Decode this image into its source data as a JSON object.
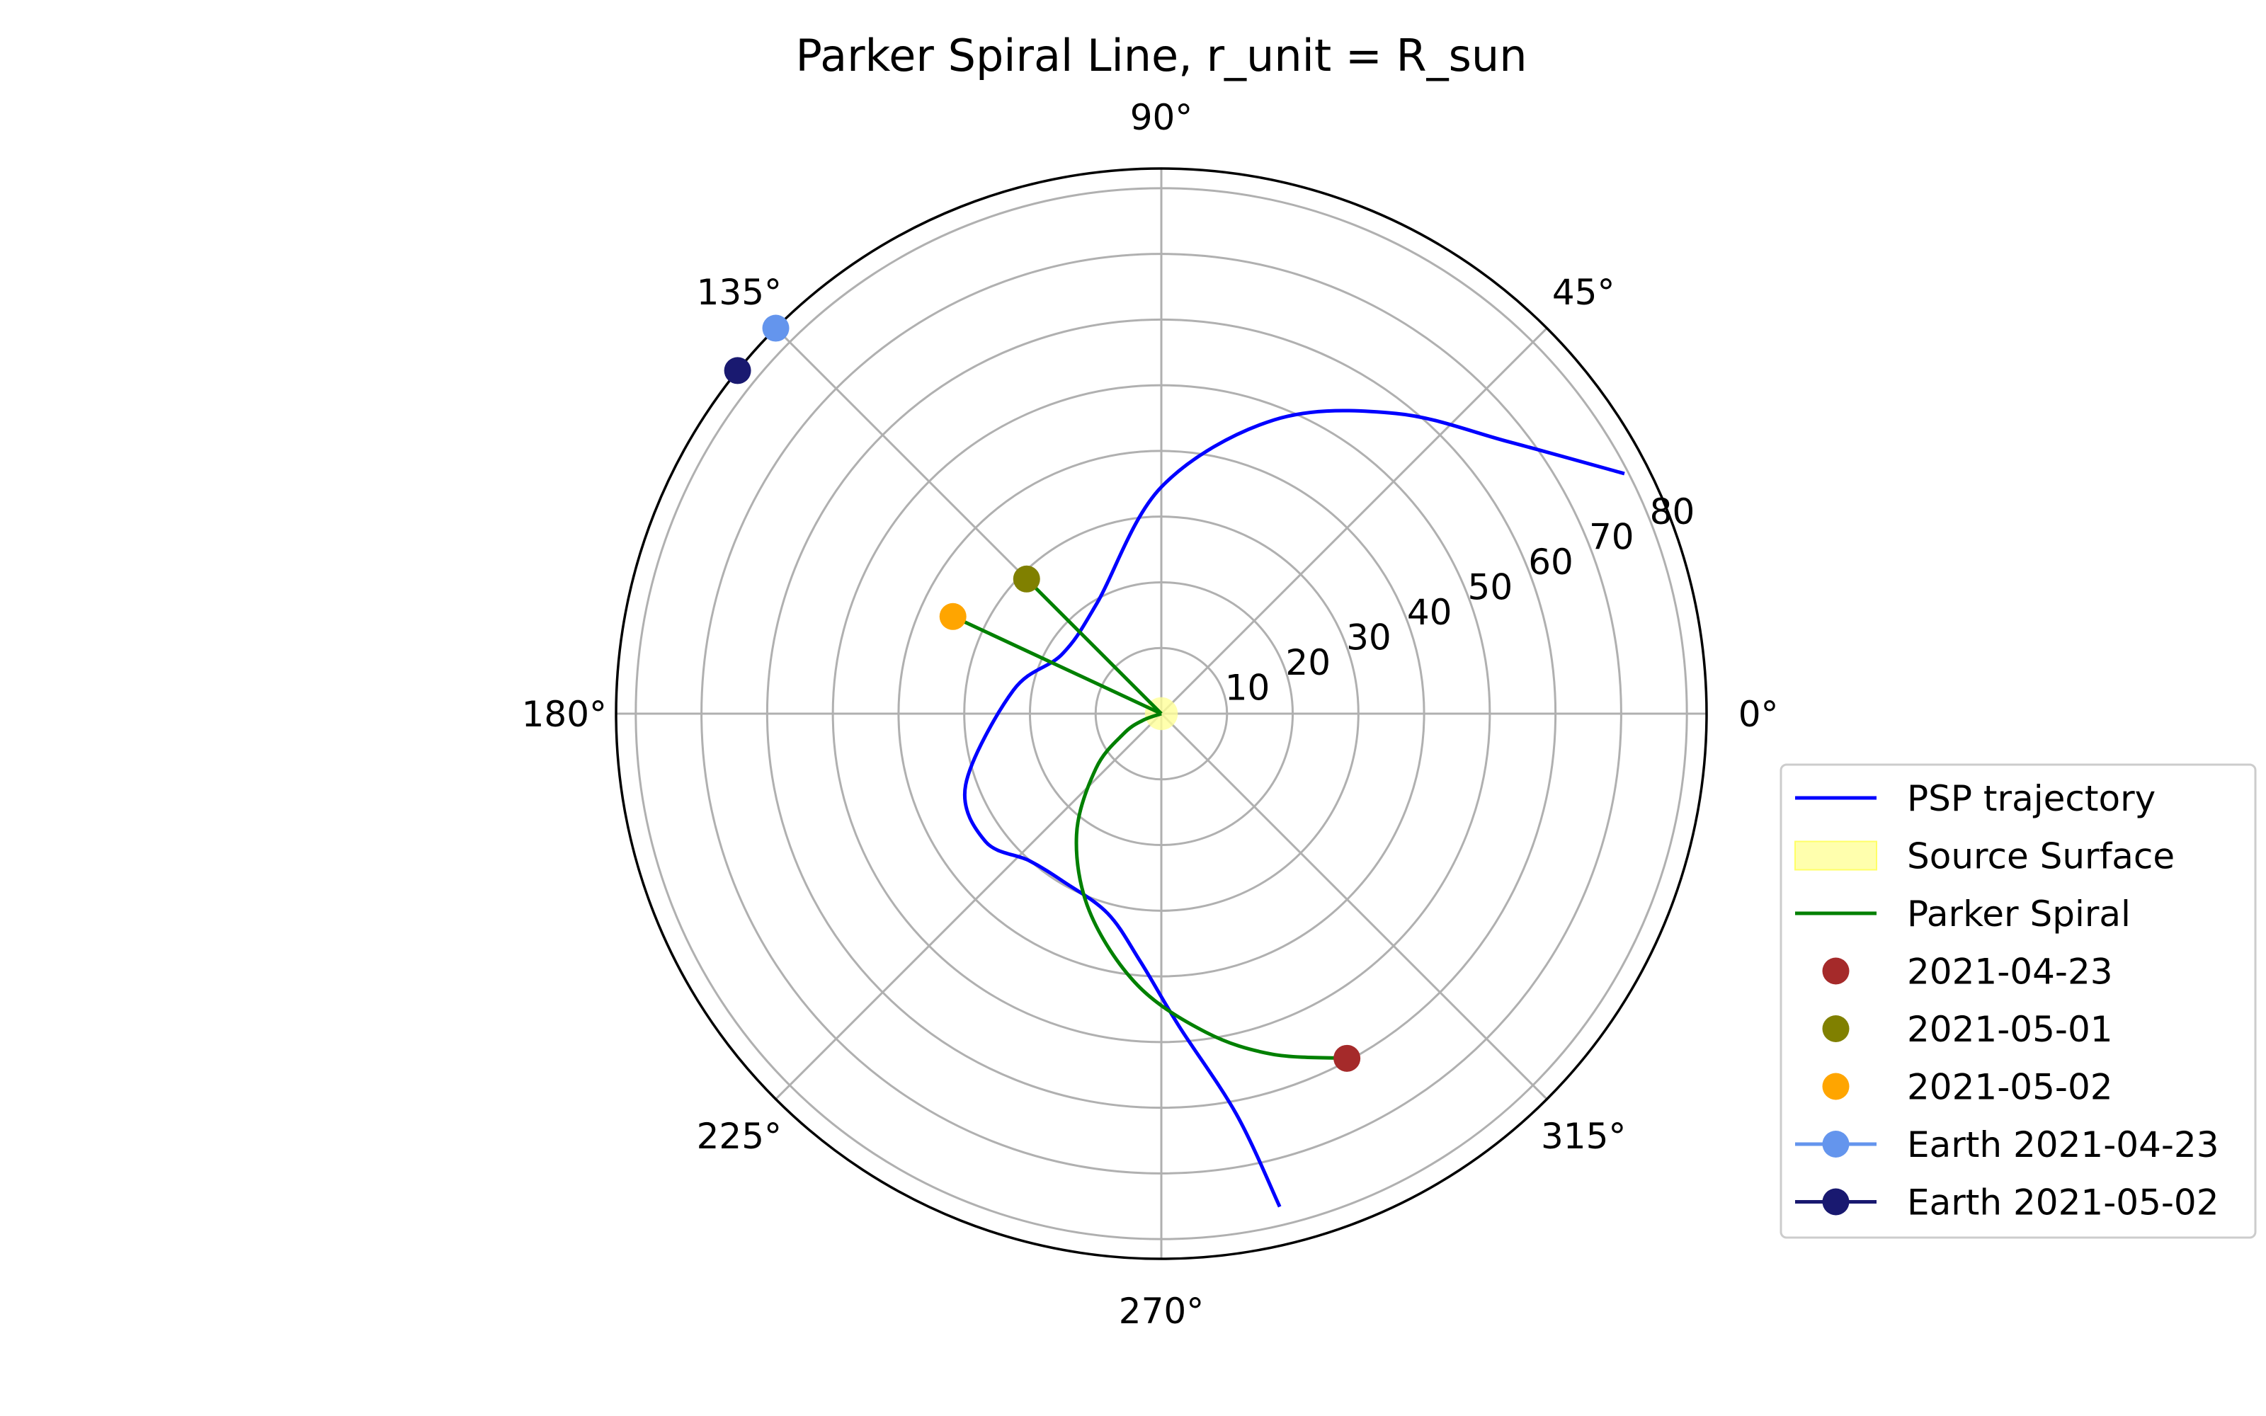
{
  "chart_data": {
    "type": "polar",
    "title": "Parker Spiral Line, r_unit = R_sun",
    "r_lim": [
      0,
      83
    ],
    "r_ticks": [
      10,
      20,
      30,
      40,
      50,
      60,
      70,
      80
    ],
    "r_tick_labels": [
      "10",
      "20",
      "30",
      "40",
      "50",
      "60",
      "70",
      "80"
    ],
    "theta_ticks_deg": [
      0,
      45,
      90,
      135,
      180,
      225,
      270,
      315
    ],
    "theta_tick_labels": [
      "0°",
      "45°",
      "90°",
      "135°",
      "180°",
      "225°",
      "270°",
      "315°"
    ],
    "grid": true,
    "legend_location": "center-right",
    "psp_trajectory": {
      "name": "PSP trajectory",
      "color": "#0000ff",
      "points": [
        [
          -76.5,
          77.2
        ],
        [
          -79.4,
          62.0
        ],
        [
          -86.8,
          47.6
        ],
        [
          -94.9,
          37.8
        ],
        [
          -105.0,
          31.5
        ],
        [
          -120.0,
          29.6
        ],
        [
          -132.0,
          30.1
        ],
        [
          -144.0,
          33.1
        ],
        [
          -160.0,
          31.7
        ],
        [
          -189.0,
          22.8
        ],
        [
          -211.0,
          17.6
        ],
        [
          -240.0,
          19.5
        ],
        [
          -270.0,
          34.5
        ],
        [
          -291.0,
          47.9
        ],
        [
          -308.0,
          58.0
        ],
        [
          -322.0,
          67.2
        ],
        [
          -332.6,
          79.4
        ]
      ]
    },
    "source_surface": {
      "name": "Source Surface",
      "color": "#ffff99",
      "radius": 2.5
    },
    "parker_spiral": {
      "name": "Parker Spiral",
      "color": "#008000",
      "lines": [
        [
          [
            -61.7,
            59.6
          ],
          [
            -72.0,
            54.5
          ],
          [
            -82.0,
            49.0
          ],
          [
            -95.0,
            41.5
          ],
          [
            -110.0,
            32.0
          ],
          [
            -125.0,
            22.5
          ],
          [
            -140.0,
            13.0
          ],
          [
            -152.0,
            6.5
          ],
          [
            -160.0,
            3.0
          ],
          [
            -168.0,
            0.0
          ]
        ],
        [
          [
            135.0,
            29.0
          ],
          [
            0.0,
            0.0
          ]
        ],
        [
          [
            155.0,
            35.0
          ],
          [
            0.0,
            0.0
          ]
        ]
      ]
    },
    "scatter": [
      {
        "name": "2021-04-23",
        "color": "#a52a2a",
        "theta": -61.7,
        "r": 59.6
      },
      {
        "name": "2021-05-01",
        "color": "#808000",
        "theta": 135.0,
        "r": 29.0
      },
      {
        "name": "2021-05-02",
        "color": "#ffa500",
        "theta": 155.0,
        "r": 35.0
      }
    ],
    "earth": [
      {
        "name": "Earth 2021-04-23",
        "color": "#6495ed",
        "theta": 135.0,
        "r": 83.0
      },
      {
        "name": "Earth 2021-05-02",
        "color": "#191970",
        "theta": 141.0,
        "r": 83.0
      }
    ]
  }
}
